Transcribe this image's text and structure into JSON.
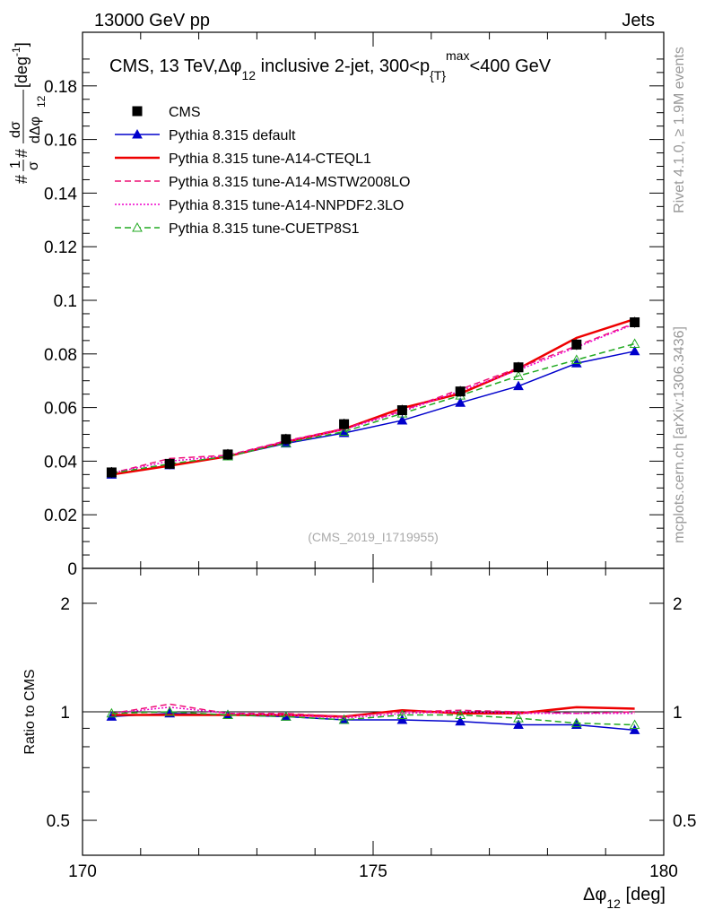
{
  "header": {
    "left": "13000 GeV pp",
    "right": "Jets"
  },
  "side_labels": {
    "rivet": "Rivet 4.1.0, ≥ 1.9M events",
    "mcplots": "mcplots.cern.ch [arXiv:1306.3436]"
  },
  "chart_data": {
    "type": "line",
    "title": "CMS, 13 TeV,Δφ₁₂ inclusive 2-jet, 300<p{T}max<400 GeV",
    "title_parts": {
      "a": "CMS, 13 TeV,Δφ",
      "a_sub": "12",
      "b": " inclusive 2-jet, 300<p",
      "b_sub": "{T}",
      "b_sup": "max",
      "c": "<400 GeV"
    },
    "watermark": "(CMS_2019_I1719955)",
    "xlabel": "Δφ",
    "xlabel_sub": "12",
    "xlabel_unit": " [deg]",
    "ylabel_parts": {
      "frac1_num": "1",
      "frac1_den": "σ",
      "hash": "#",
      "frac2_num": "dσ",
      "frac2_den": "dΔφ",
      "frac2_den_sub": "12",
      "unit": " [deg",
      "unit_sup": "-1",
      "unit_close": "]"
    },
    "ratio_ylabel": "Ratio to CMS",
    "xlim": [
      170,
      180
    ],
    "ylim": [
      0,
      0.2
    ],
    "ratio_ylim": [
      0.4,
      2.5
    ],
    "x_ticks": [
      "170",
      "175",
      "180"
    ],
    "y_ticks": [
      "0",
      "0.02",
      "0.04",
      "0.06",
      "0.08",
      "0.1",
      "0.12",
      "0.14",
      "0.16",
      "0.18"
    ],
    "ratio_ticks": [
      "0.5",
      "1",
      "2"
    ],
    "x": [
      170.5,
      171.5,
      172.5,
      173.5,
      174.5,
      175.5,
      176.5,
      177.5,
      178.5,
      179.5
    ],
    "data": {
      "name": "CMS",
      "values": [
        0.0358,
        0.039,
        0.0425,
        0.0482,
        0.0538,
        0.059,
        0.066,
        0.075,
        0.0835,
        0.0918
      ]
    },
    "series": [
      {
        "name": "Pythia 8.315 default",
        "color": "#0000cc",
        "style": "solid",
        "marker": "filled-triangle",
        "values": [
          0.035,
          0.0385,
          0.0418,
          0.0466,
          0.0505,
          0.0552,
          0.0618,
          0.068,
          0.0765,
          0.081
        ],
        "ratio": [
          0.97,
          0.99,
          0.98,
          0.97,
          0.95,
          0.95,
          0.94,
          0.92,
          0.92,
          0.89
        ]
      },
      {
        "name": "Pythia 8.315 tune-A14-CTEQL1",
        "color": "#ee0000",
        "style": "solid-thick",
        "marker": "none",
        "values": [
          0.035,
          0.0383,
          0.0418,
          0.0472,
          0.052,
          0.0598,
          0.0652,
          0.0745,
          0.086,
          0.093
        ],
        "ratio": [
          0.98,
          0.98,
          0.98,
          0.98,
          0.97,
          1.01,
          0.99,
          0.99,
          1.03,
          1.02
        ]
      },
      {
        "name": "Pythia 8.315 tune-A14-MSTW2008LO",
        "color": "#ee1177",
        "style": "dashed",
        "marker": "none",
        "values": [
          0.0355,
          0.041,
          0.0422,
          0.0476,
          0.0522,
          0.0588,
          0.0668,
          0.0748,
          0.083,
          0.0915
        ],
        "ratio": [
          0.99,
          1.05,
          0.99,
          0.99,
          0.97,
          1.0,
          1.01,
          1.0,
          0.99,
          1.0
        ]
      },
      {
        "name": "Pythia 8.315 tune-A14-NNPDF2.3LO",
        "color": "#ee00cc",
        "style": "dotted",
        "marker": "none",
        "values": [
          0.0356,
          0.04,
          0.042,
          0.0474,
          0.0518,
          0.0585,
          0.0662,
          0.074,
          0.0825,
          0.0912
        ],
        "ratio": [
          0.99,
          1.03,
          0.99,
          0.98,
          0.96,
          0.99,
          1.0,
          0.99,
          0.99,
          0.99
        ]
      },
      {
        "name": "Pythia 8.315 tune-CUETP8S1",
        "color": "#22aa22",
        "style": "dashed",
        "marker": "open-triangle",
        "values": [
          0.0355,
          0.039,
          0.0418,
          0.0468,
          0.051,
          0.0578,
          0.0645,
          0.0718,
          0.0778,
          0.0838
        ],
        "ratio": [
          0.99,
          1.0,
          0.98,
          0.97,
          0.95,
          0.98,
          0.98,
          0.96,
          0.93,
          0.92
        ]
      }
    ]
  }
}
